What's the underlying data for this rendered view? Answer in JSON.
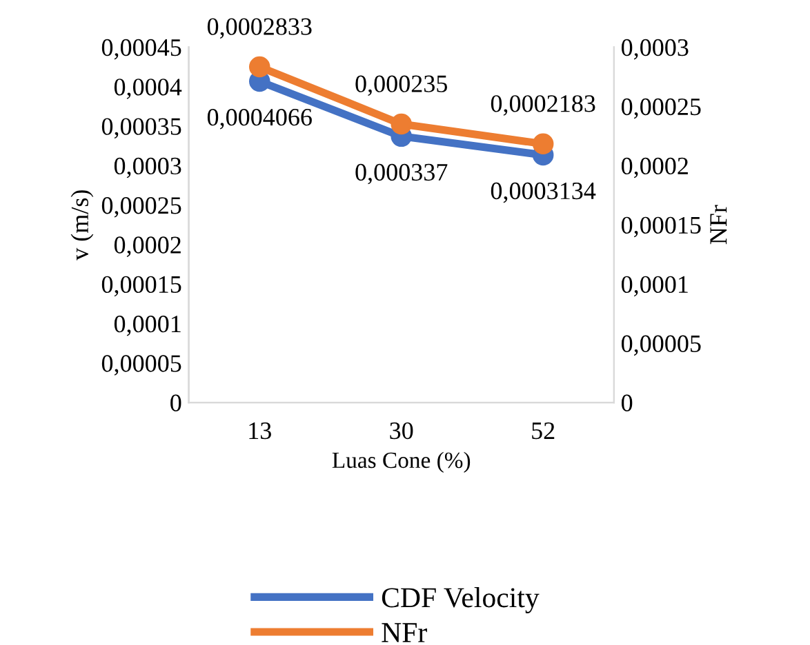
{
  "chart_data": {
    "type": "line",
    "xlabel": "Luas Cone (%)",
    "ylabel": "v (m/s)",
    "y2label": "NFr",
    "categories": [
      "13",
      "30",
      "52"
    ],
    "series": [
      {
        "name": "CDF Velocity",
        "color": "#4472c4",
        "values": [
          0.0004066,
          0.000337,
          0.0003134
        ],
        "value_labels": [
          "0,0004066",
          "0,000337",
          "0,0003134"
        ]
      },
      {
        "name": "NFr",
        "color": "#ed7d31",
        "axis": "y2",
        "values": [
          0.0002833,
          0.000235,
          0.0002183
        ],
        "value_labels": [
          "0,0002833",
          "0,000235",
          "0,0002183"
        ]
      }
    ],
    "ylim": [
      0,
      0.00045
    ],
    "yticks": [
      0,
      {
        "value": 5e-05,
        "label": "0,00005"
      },
      {
        "value": 0.0001,
        "label": "0,0001"
      },
      {
        "value": 0.00015,
        "label": "0,00015"
      },
      {
        "value": 0.0002,
        "label": "0,0002"
      },
      {
        "value": 0.00025,
        "label": "0,00025"
      },
      {
        "value": 0.0003,
        "label": "0,0003"
      },
      {
        "value": 0.00035,
        "label": "0,00035"
      },
      {
        "value": 0.0004,
        "label": "0,0004"
      },
      {
        "value": 0.00045,
        "label": "0,00045"
      }
    ],
    "y2lim": [
      0,
      0.0003
    ],
    "y2ticks": [
      0,
      {
        "value": 5e-05,
        "label": "0,00005"
      },
      {
        "value": 0.0001,
        "label": "0,0001"
      },
      {
        "value": 0.00015,
        "label": "0,00015"
      },
      {
        "value": 0.0002,
        "label": "0,0002"
      },
      {
        "value": 0.00025,
        "label": "0,00025"
      },
      {
        "value": 0.0003,
        "label": "0,0003"
      }
    ],
    "marker": "circle",
    "line_style": "solid",
    "legend": "bottom",
    "grid": false
  }
}
